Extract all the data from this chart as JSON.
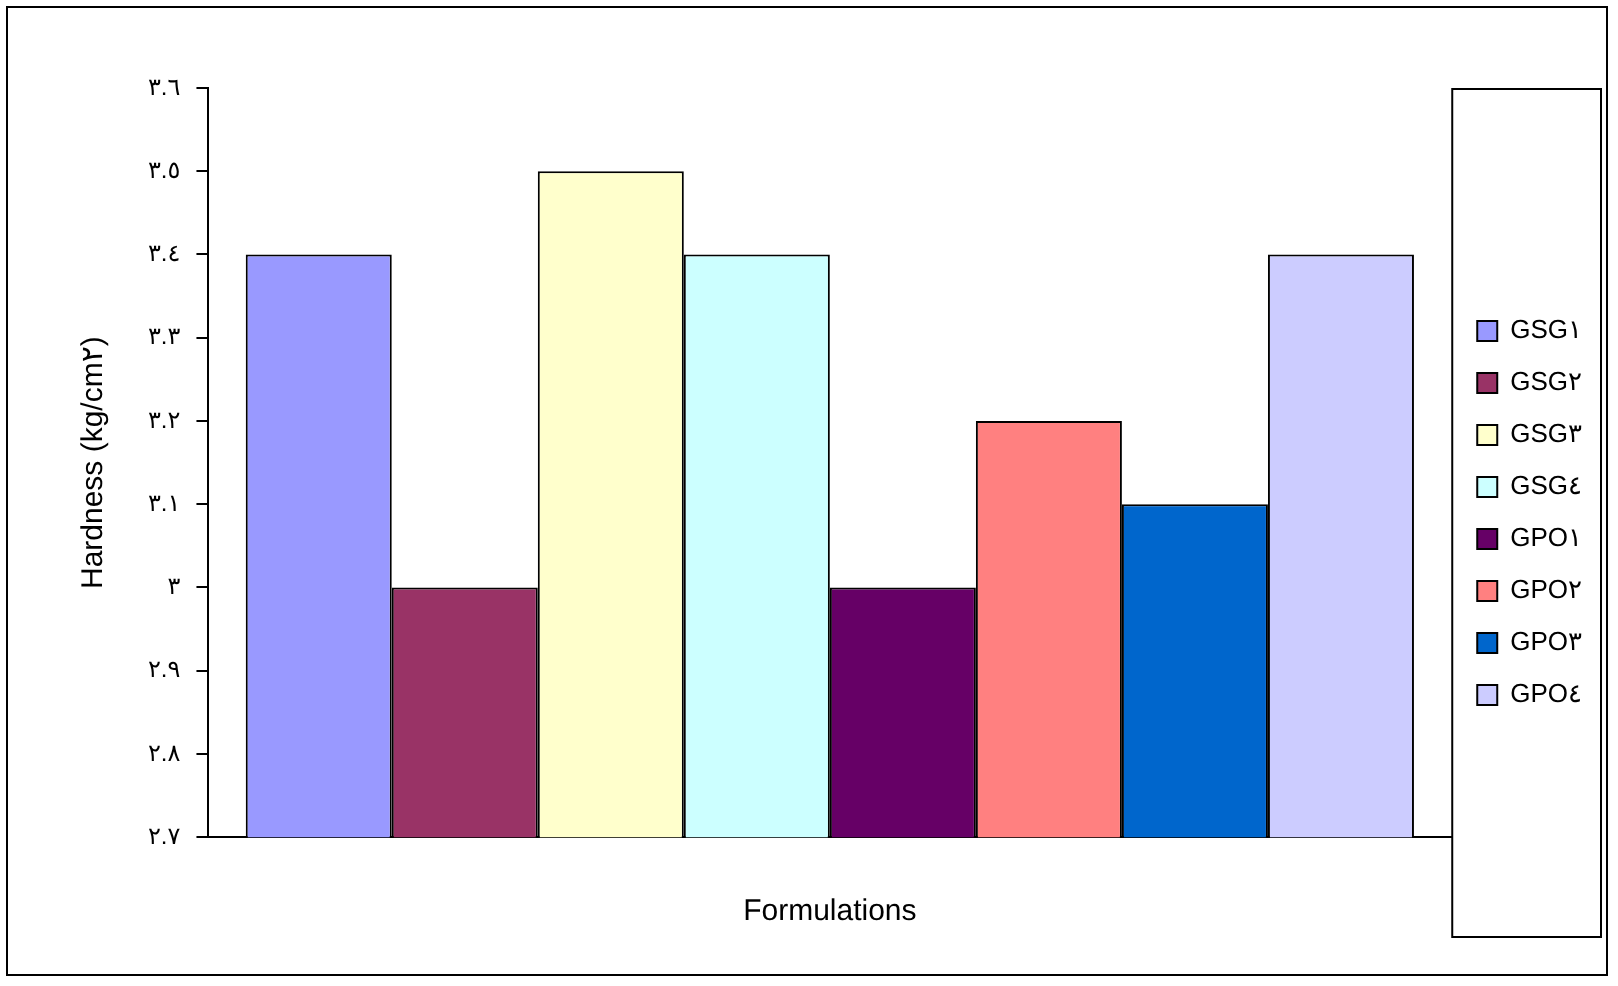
{
  "chart_data": {
    "type": "bar",
    "xlabel": "Formulations",
    "ylabel": "Hardness (kg/cm٢)",
    "categories": [
      null
    ],
    "series": [
      {
        "name": "GSG١",
        "color": "#9999ff",
        "values": [
          3.4
        ]
      },
      {
        "name": "GSG٢",
        "color": "#993366",
        "values": [
          3.0
        ]
      },
      {
        "name": "GSG٣",
        "color": "#ffffcc",
        "values": [
          3.5
        ]
      },
      {
        "name": "GSG٤",
        "color": "#ccffff",
        "values": [
          3.4
        ]
      },
      {
        "name": "GPO١",
        "color": "#660066",
        "values": [
          3.0
        ]
      },
      {
        "name": "GPO٢",
        "color": "#ff8080",
        "values": [
          3.2
        ]
      },
      {
        "name": "GPO٣",
        "color": "#0066cc",
        "values": [
          3.1
        ]
      },
      {
        "name": "GPO٤",
        "color": "#ccccff",
        "values": [
          3.4
        ]
      }
    ],
    "ylim": [
      2.7,
      3.6
    ],
    "yticks": [
      {
        "value": 2.7,
        "label": "٢.٧"
      },
      {
        "value": 2.8,
        "label": "٢.٨"
      },
      {
        "value": 2.9,
        "label": "٢.٩"
      },
      {
        "value": 3.0,
        "label": "٣"
      },
      {
        "value": 3.1,
        "label": "٣.١"
      },
      {
        "value": 3.2,
        "label": "٣.٢"
      },
      {
        "value": 3.3,
        "label": "٣.٣"
      },
      {
        "value": 3.4,
        "label": "٣.٤"
      },
      {
        "value": 3.5,
        "label": "٣.٥"
      },
      {
        "value": 3.6,
        "label": "٣.٦"
      }
    ],
    "grid": false,
    "legend": "right"
  }
}
